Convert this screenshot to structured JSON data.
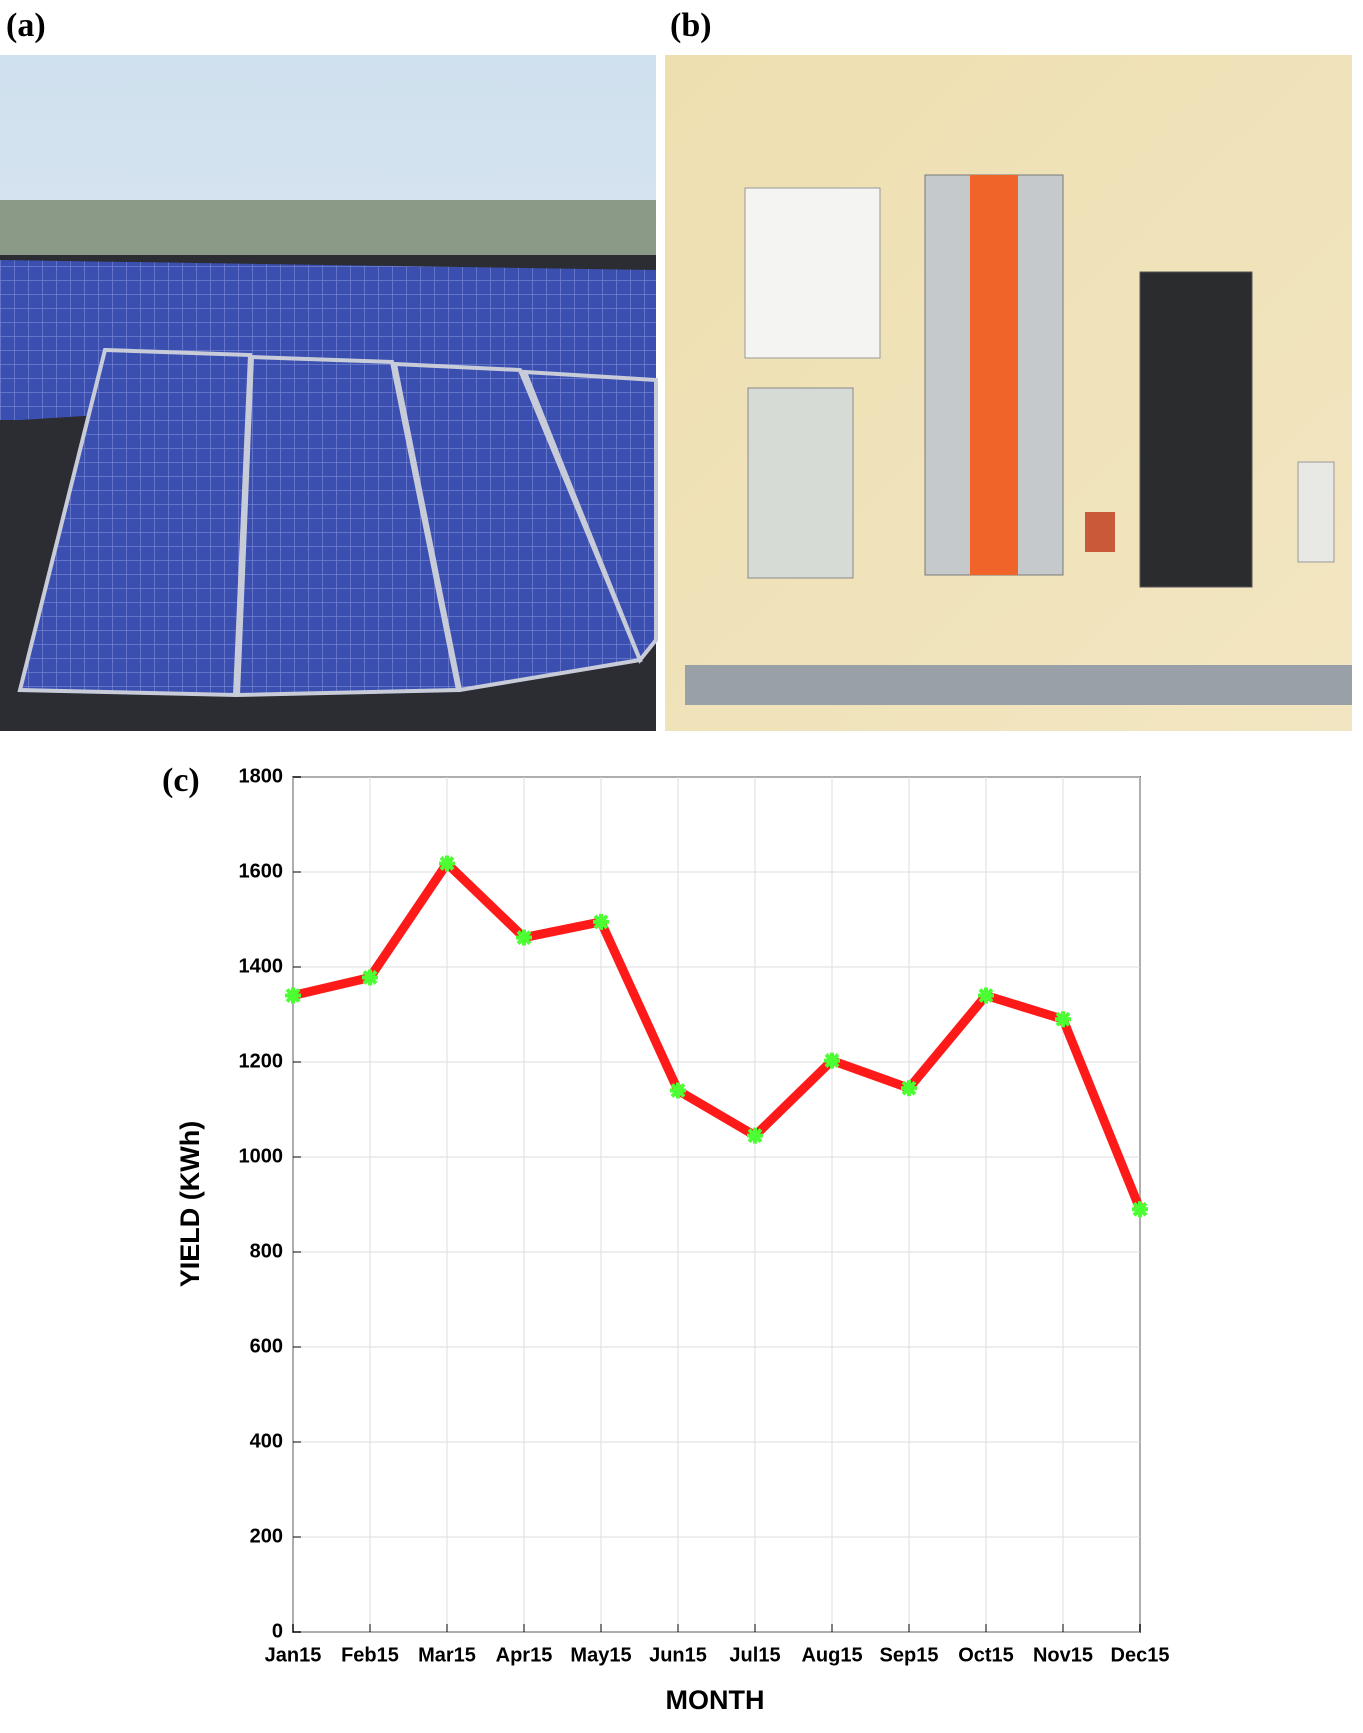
{
  "panels": {
    "a": "(a)",
    "b": "(b)",
    "c": "(c)"
  },
  "chart_data": {
    "type": "line",
    "xlabel": "MONTH",
    "ylabel": "YIELD (KWh)",
    "categories": [
      "Jan15",
      "Feb15",
      "Mar15",
      "Apr15",
      "May15",
      "Jun15",
      "Jul15",
      "Aug15",
      "Sep15",
      "Oct15",
      "Nov15",
      "Dec15"
    ],
    "series": [
      {
        "name": "Yield",
        "color": "#ff1a1a",
        "marker_color": "#4cff33",
        "values": [
          1340,
          1378,
          1618,
          1462,
          1495,
          1140,
          1045,
          1203,
          1145,
          1340,
          1290,
          890
        ]
      }
    ],
    "ylim": [
      0,
      1800
    ],
    "yticks": [
      0,
      200,
      400,
      600,
      800,
      1000,
      1200,
      1400,
      1600,
      1800
    ],
    "grid": true
  }
}
